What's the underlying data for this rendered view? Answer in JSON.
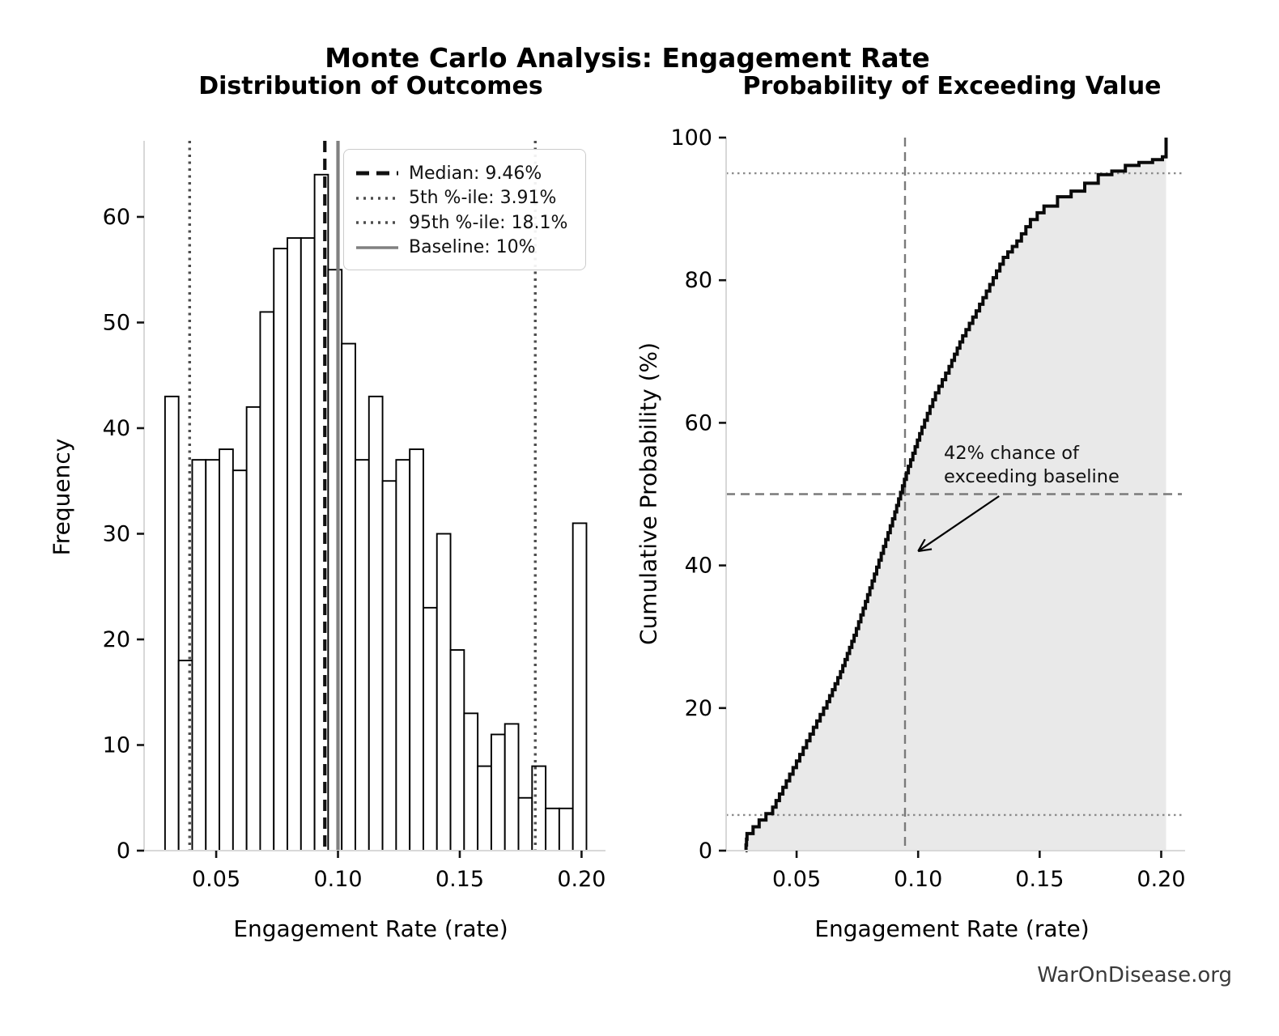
{
  "page": {
    "suptitle": "Monte Carlo Analysis: Engagement Rate",
    "watermark": "WarOnDisease.org"
  },
  "legend": {
    "items": [
      {
        "label": "Median: 9.46%",
        "style": "dashed",
        "color": "#111111",
        "width": 5
      },
      {
        "label": "5th %-ile: 3.91%",
        "style": "dotted",
        "color": "#4d4d4d",
        "width": 3.5
      },
      {
        "label": "95th %-ile: 18.1%",
        "style": "dotted",
        "color": "#4d4d4d",
        "width": 3.5
      },
      {
        "label": "Baseline: 10%",
        "style": "solid",
        "color": "#808080",
        "width": 3.5
      }
    ]
  },
  "annotation": {
    "line1": "42% chance of",
    "line2": "exceeding baseline",
    "points_to": {
      "x": 0.1,
      "y": 42
    }
  },
  "colors": {
    "bar_fill": "#ffffff",
    "bar_edge": "#000000",
    "median": "#111111",
    "percentile": "#4d4d4d",
    "baseline": "#808080",
    "curve": "#0a0a0a",
    "cdf_fill": "#e9e9e9",
    "crosshair": "#7a7a7a",
    "dotted_marker": "#8c8c8c",
    "spine": "#d8d8d8",
    "tick": "#141414",
    "text": "#000000",
    "watermark": "#3a3a3a",
    "legend_border": "#cccccc"
  },
  "chart_data": [
    {
      "type": "bar",
      "title": "Distribution of Outcomes",
      "xlabel": "Engagement Rate (rate)",
      "ylabel": "Frequency",
      "bin_start": 0.029,
      "bin_width": 0.005581,
      "counts": [
        43,
        18,
        37,
        37,
        38,
        36,
        42,
        51,
        57,
        58,
        58,
        64,
        55,
        48,
        37,
        43,
        35,
        37,
        38,
        23,
        30,
        19,
        13,
        8,
        11,
        12,
        5,
        8,
        4,
        4,
        31
      ],
      "total_samples": 1000,
      "xticks": [
        0.05,
        0.1,
        0.15,
        0.2
      ],
      "xtick_labels": [
        "0.05",
        "0.10",
        "0.15",
        "0.20"
      ],
      "yticks": [
        0,
        10,
        20,
        30,
        40,
        50,
        60
      ],
      "xlim": [
        0.0204,
        0.2085
      ],
      "ylim": [
        0,
        67.2
      ],
      "grid": false,
      "legend_position": "upper right",
      "ref_lines": [
        {
          "label": "Median: 9.46%",
          "x": 0.0946,
          "style": "dashed",
          "color": "#111111",
          "width": 4.2
        },
        {
          "label": "5th %-ile: 3.91%",
          "x": 0.0391,
          "style": "dotted",
          "color": "#4d4d4d",
          "width": 3.4
        },
        {
          "label": "95th %-ile: 18.1%",
          "x": 0.181,
          "style": "dotted",
          "color": "#4d4d4d",
          "width": 3.4
        },
        {
          "label": "Baseline: 10%",
          "x": 0.1,
          "style": "solid",
          "color": "#808080",
          "width": 4.2
        }
      ]
    },
    {
      "type": "line",
      "title": "Probability of Exceeding Value",
      "xlabel": "Engagement Rate (rate)",
      "ylabel": "Cumulative Probability (%)",
      "x": [
        0.029,
        0.0296,
        0.03458,
        0.04016,
        0.04574,
        0.05132,
        0.0569,
        0.06249,
        0.06807,
        0.07365,
        0.07923,
        0.08481,
        0.09039,
        0.09597,
        0.10155,
        0.10713,
        0.11272,
        0.1183,
        0.12388,
        0.12946,
        0.13504,
        0.14062,
        0.1462,
        0.15178,
        0.15736,
        0.16294,
        0.16853,
        0.17411,
        0.17969,
        0.18527,
        0.19085,
        0.19643,
        0.2005,
        0.20201,
        0.20201
      ],
      "y": [
        0,
        2.4,
        4.3,
        6.1,
        9.8,
        13.5,
        17.3,
        20.9,
        25.1,
        30.2,
        35.9,
        41.7,
        47.5,
        53.9,
        59.4,
        64.2,
        67.9,
        72.2,
        75.7,
        79.4,
        83.2,
        85.5,
        88.5,
        90.4,
        91.7,
        92.5,
        93.6,
        94.8,
        95.3,
        96.1,
        96.5,
        96.9,
        97.3,
        97.5,
        100
      ],
      "fill_under_curve": true,
      "xticks": [
        0.05,
        0.1,
        0.15,
        0.2
      ],
      "xtick_labels": [
        "0.05",
        "0.10",
        "0.15",
        "0.20"
      ],
      "yticks": [
        0,
        20,
        40,
        60,
        80,
        100
      ],
      "xlim": [
        0.021,
        0.2085
      ],
      "ylim": [
        0,
        100
      ],
      "grid": false,
      "hlines": [
        {
          "y": 50,
          "style": "dashed"
        },
        {
          "y": 5,
          "style": "dotted"
        },
        {
          "y": 95,
          "style": "dotted"
        }
      ],
      "vlines": [
        {
          "x": 0.0946,
          "style": "dashed"
        }
      ]
    }
  ]
}
